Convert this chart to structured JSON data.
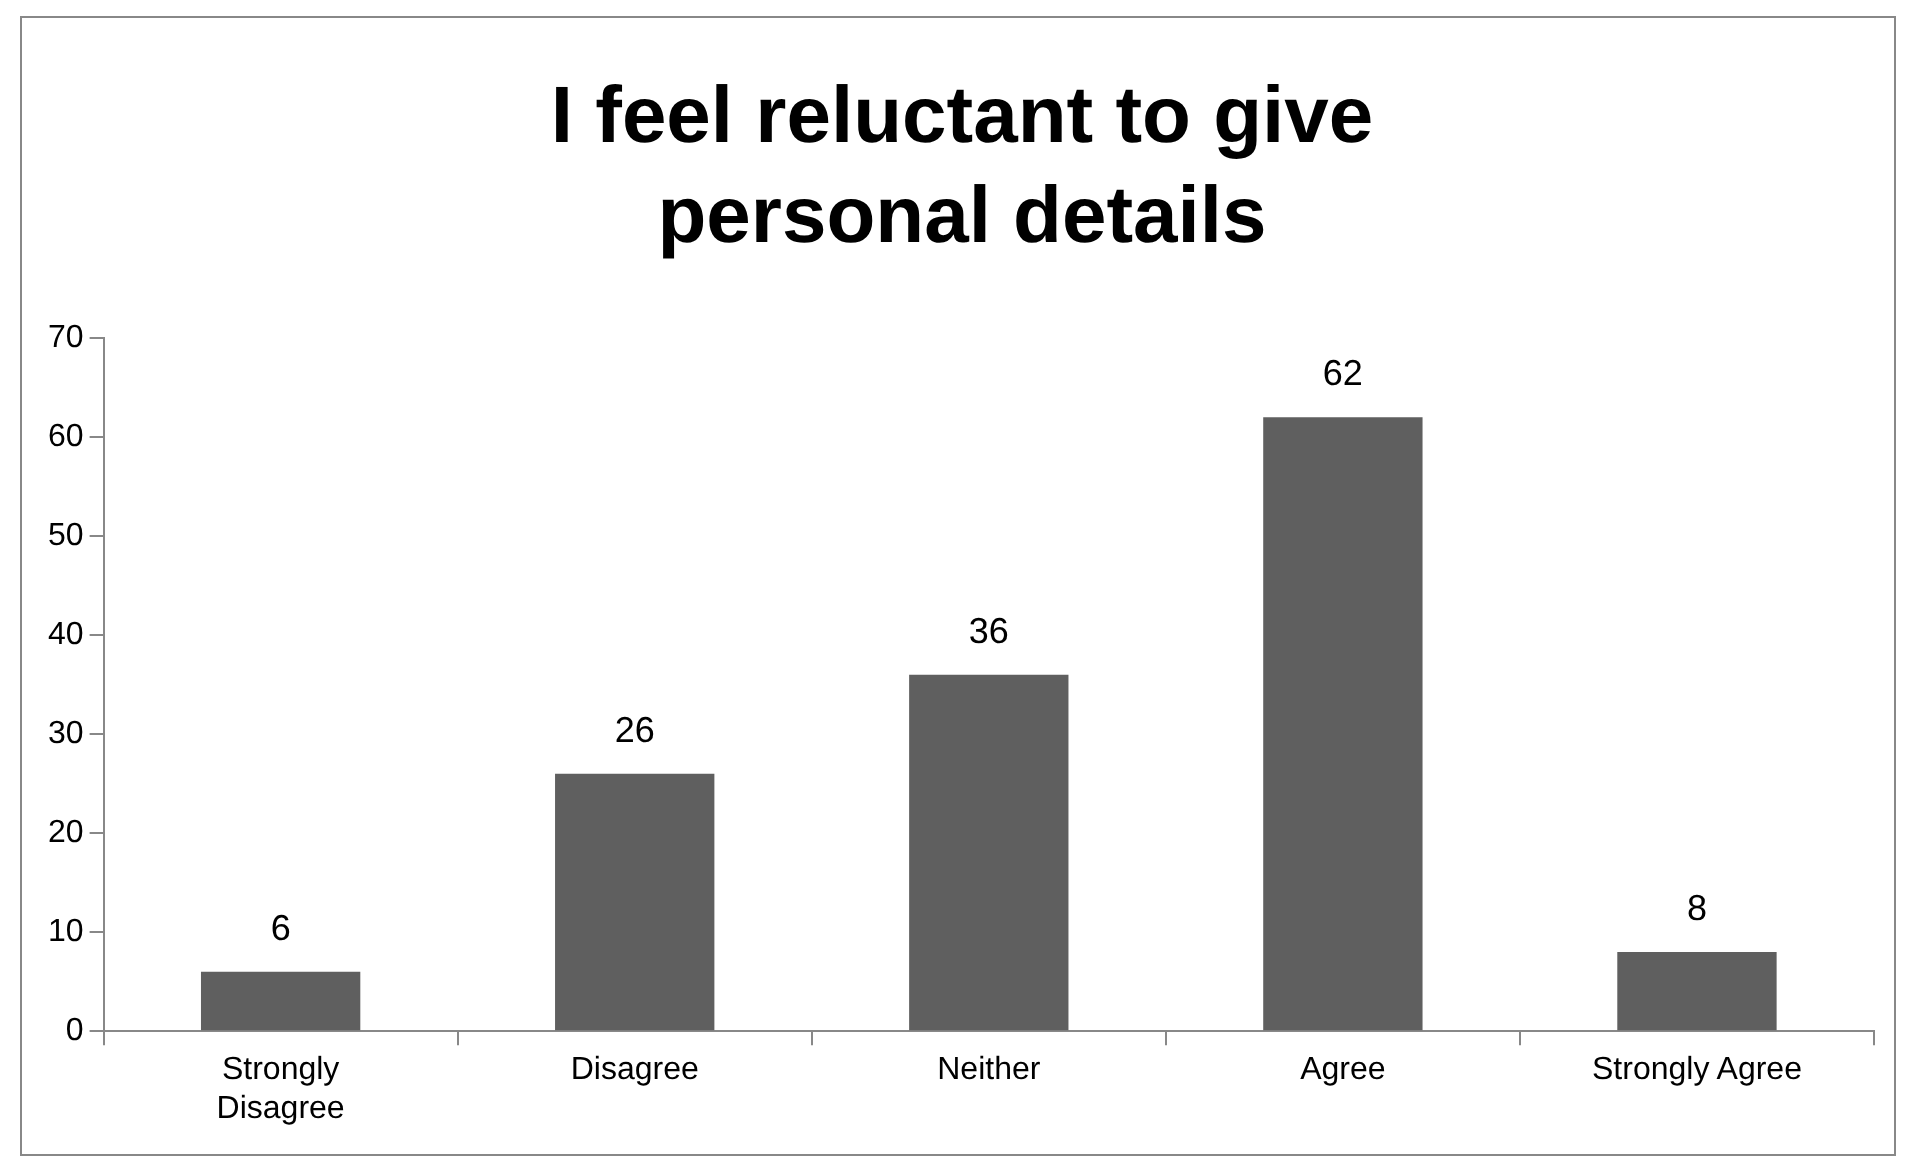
{
  "chart_data": {
    "type": "bar",
    "title": "I feel reluctant to give personal details",
    "categories": [
      "Strongly Disagree",
      "Disagree",
      "Neither",
      "Agree",
      "Strongly Agree"
    ],
    "values": [
      6,
      26,
      36,
      62,
      8
    ],
    "color": "#5f5f5f",
    "ylim": [
      0,
      70
    ],
    "yticks": [
      0,
      10,
      20,
      30,
      40,
      50,
      60,
      70
    ],
    "grid": false,
    "legend": false,
    "data_labels": true
  }
}
